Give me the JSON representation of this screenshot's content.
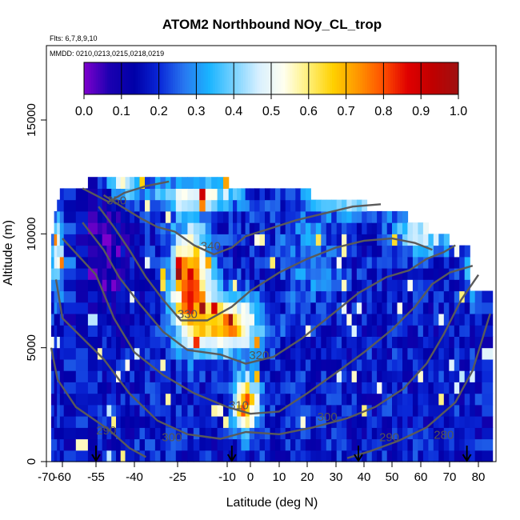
{
  "chart_data": {
    "type": "heatmap",
    "title": "ATOM2 Northbound NOy_CL_trop",
    "flights_note": "Flts: 6,7,8,9,10",
    "dates_note": "MMDD: 0210,0213,0215,0218,0219",
    "xlabel": "Latitude (deg N)",
    "ylabel": "Altitude (m)",
    "xlim": [
      -70,
      83
    ],
    "ylim": [
      0,
      18000
    ],
    "x_ticks": [
      -70,
      -60,
      -55,
      -40,
      -25,
      -10,
      0,
      10,
      20,
      30,
      40,
      50,
      60,
      70,
      80
    ],
    "y_ticks": [
      0,
      5000,
      10000,
      15000
    ],
    "colorbar": {
      "ticks": [
        "0.0",
        "0.1",
        "0.2",
        "0.3",
        "0.4",
        "0.5",
        "0.6",
        "0.7",
        "0.8",
        "0.9",
        "1.0"
      ],
      "range": [
        0,
        1
      ],
      "colors": [
        "#7a00cc",
        "#1a00b0",
        "#0000a8",
        "#0a28d8",
        "#2878f0",
        "#1ab4ff",
        "#78d2ff",
        "#d8f0ff",
        "#fffff0",
        "#fff078",
        "#ffd000",
        "#ff9600",
        "#ff5000",
        "#e00000",
        "#c00000",
        "#a01010"
      ]
    },
    "contour_labels": [
      {
        "text": "350",
        "x": -47,
        "y": 11300
      },
      {
        "text": "340",
        "x": -15,
        "y": 9300
      },
      {
        "text": "330",
        "x": -22,
        "y": 6300
      },
      {
        "text": "320",
        "x": 3,
        "y": 4500
      },
      {
        "text": "310",
        "x": -5,
        "y": 2300
      },
      {
        "text": "300",
        "x": 27,
        "y": 1800
      },
      {
        "text": "300",
        "x": -27,
        "y": 900
      },
      {
        "text": "290",
        "x": 49,
        "y": 900
      },
      {
        "text": "290",
        "x": -51,
        "y": 1200
      },
      {
        "text": "280",
        "x": 68,
        "y": 1000
      }
    ],
    "arrows_lat": [
      -55,
      -8,
      38,
      76
    ],
    "contours": [
      {
        "level": 290,
        "pts": [
          [
            -67,
            5000
          ],
          [
            -63,
            3600
          ],
          [
            -58,
            2400
          ],
          [
            -50,
            1400
          ],
          [
            -42,
            600
          ],
          [
            -36,
            200
          ]
        ]
      },
      {
        "level": 290,
        "pts": [
          [
            34,
            150
          ],
          [
            42,
            450
          ],
          [
            52,
            900
          ],
          [
            62,
            1500
          ],
          [
            72,
            2600
          ],
          [
            78,
            4000
          ],
          [
            82,
            6500
          ]
        ]
      },
      {
        "level": 300,
        "pts": [
          [
            -64,
            8000
          ],
          [
            -60,
            6300
          ],
          [
            -52,
            4500
          ],
          [
            -42,
            3000
          ],
          [
            -32,
            1800
          ],
          [
            -22,
            1200
          ],
          [
            -12,
            1000
          ],
          [
            -2,
            1300
          ],
          [
            10,
            1200
          ],
          [
            22,
            1500
          ],
          [
            34,
            1900
          ],
          [
            44,
            2400
          ],
          [
            54,
            3200
          ],
          [
            62,
            4300
          ],
          [
            68,
            5600
          ],
          [
            74,
            7100
          ],
          [
            80,
            8200
          ]
        ]
      },
      {
        "level": 310,
        "pts": [
          [
            -60,
            9800
          ],
          [
            -55,
            8200
          ],
          [
            -48,
            6300
          ],
          [
            -40,
            4800
          ],
          [
            -30,
            3800
          ],
          [
            -20,
            3000
          ],
          [
            -10,
            2400
          ],
          [
            0,
            2100
          ],
          [
            10,
            2200
          ],
          [
            20,
            3000
          ],
          [
            30,
            3900
          ],
          [
            40,
            4800
          ],
          [
            50,
            5800
          ],
          [
            58,
            6800
          ],
          [
            64,
            7800
          ],
          [
            70,
            8300
          ],
          [
            78,
            8600
          ]
        ]
      },
      {
        "level": 320,
        "pts": [
          [
            -57,
            10500
          ],
          [
            -52,
            9300
          ],
          [
            -46,
            8100
          ],
          [
            -38,
            6900
          ],
          [
            -30,
            5700
          ],
          [
            -22,
            4900
          ],
          [
            -12,
            4700
          ],
          [
            -2,
            4300
          ],
          [
            8,
            4600
          ],
          [
            18,
            5400
          ],
          [
            28,
            6400
          ],
          [
            38,
            7400
          ],
          [
            48,
            8100
          ],
          [
            56,
            8400
          ],
          [
            62,
            8900
          ],
          [
            68,
            9200
          ],
          [
            72,
            9500
          ]
        ]
      },
      {
        "level": 330,
        "pts": [
          [
            -54,
            11200
          ],
          [
            -48,
            10300
          ],
          [
            -42,
            9300
          ],
          [
            -36,
            8100
          ],
          [
            -30,
            7100
          ],
          [
            -24,
            6200
          ],
          [
            -16,
            6200
          ],
          [
            -8,
            6800
          ],
          [
            0,
            7500
          ],
          [
            10,
            8300
          ],
          [
            20,
            8900
          ],
          [
            30,
            9400
          ],
          [
            40,
            9700
          ],
          [
            50,
            9800
          ],
          [
            58,
            9600
          ],
          [
            64,
            9300
          ]
        ]
      },
      {
        "level": 340,
        "pts": [
          [
            -52,
            11700
          ],
          [
            -45,
            11200
          ],
          [
            -38,
            10700
          ],
          [
            -32,
            10300
          ],
          [
            -26,
            10100
          ],
          [
            -20,
            9500
          ],
          [
            -14,
            9100
          ],
          [
            -8,
            9400
          ],
          [
            -2,
            9900
          ],
          [
            6,
            10200
          ],
          [
            16,
            10600
          ],
          [
            26,
            10900
          ],
          [
            36,
            11200
          ],
          [
            46,
            11300
          ]
        ]
      },
      {
        "level": 350,
        "pts": [
          [
            -57,
            12000
          ],
          [
            -50,
            11400
          ],
          [
            -44,
            11800
          ],
          [
            -36,
            12100
          ],
          [
            -28,
            12300
          ]
        ]
      }
    ]
  }
}
